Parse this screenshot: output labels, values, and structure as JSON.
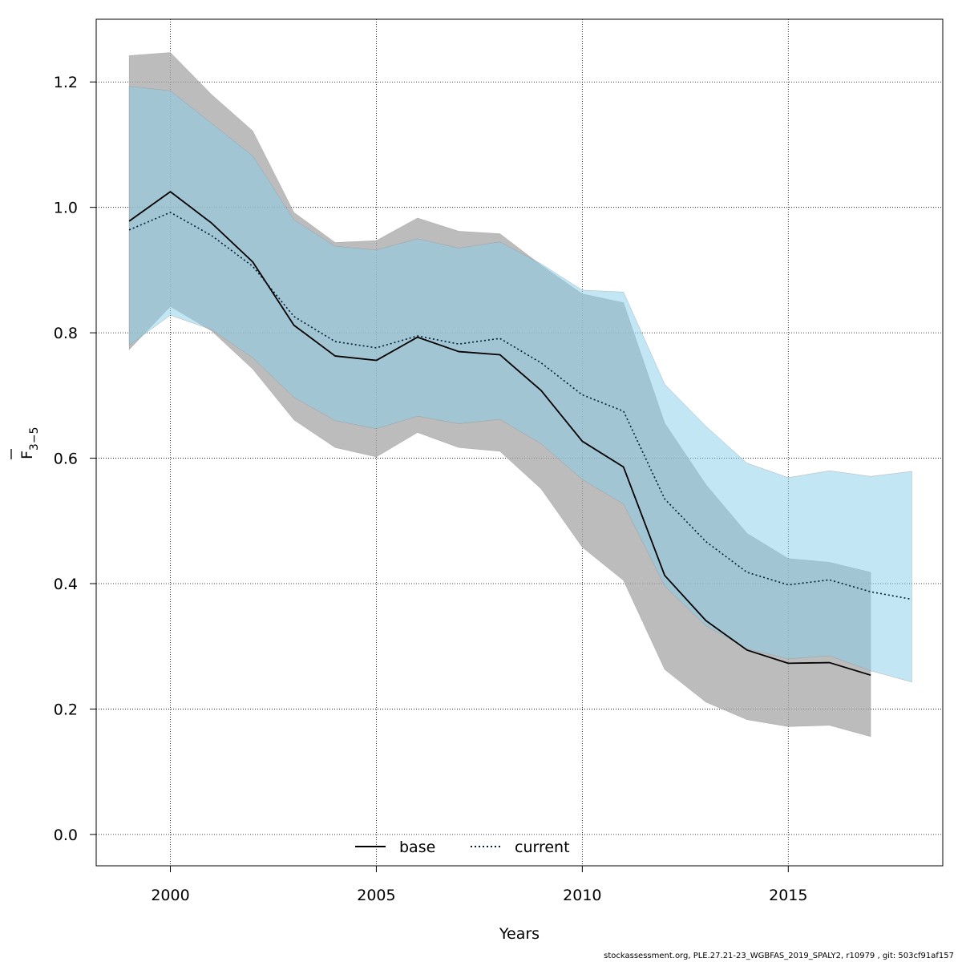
{
  "chart_data": {
    "type": "line",
    "xlabel": "Years",
    "ylabel_main": "F",
    "ylabel_sub": "3−5",
    "xlim": [
      1998.2,
      2018.75
    ],
    "ylim": [
      -0.05,
      1.3
    ],
    "xticks": [
      2000,
      2005,
      2010,
      2015
    ],
    "yticks": [
      0.0,
      0.2,
      0.4,
      0.6,
      0.8,
      1.0,
      1.2
    ],
    "ytick_labels": [
      "0.0",
      "0.2",
      "0.4",
      "0.6",
      "0.8",
      "1.0",
      "1.2"
    ],
    "grid": true,
    "legend_placement": "bottom-center",
    "series": [
      {
        "name": "base",
        "line_style": "solid",
        "line_color": "#000000",
        "band_color": "#a6a6a6",
        "x": [
          1999,
          2000,
          2001,
          2002,
          2003,
          2004,
          2005,
          2006,
          2007,
          2008,
          2009,
          2010,
          2011,
          2012,
          2013,
          2014,
          2015,
          2016,
          2017
        ],
        "y": [
          0.978,
          1.025,
          0.975,
          0.913,
          0.812,
          0.763,
          0.756,
          0.793,
          0.77,
          0.765,
          0.708,
          0.627,
          0.586,
          0.413,
          0.341,
          0.294,
          0.273,
          0.274,
          0.254
        ],
        "lower": [
          0.773,
          0.842,
          0.803,
          0.742,
          0.661,
          0.617,
          0.602,
          0.641,
          0.617,
          0.611,
          0.551,
          0.458,
          0.405,
          0.263,
          0.211,
          0.183,
          0.172,
          0.174,
          0.156
        ],
        "upper": [
          1.242,
          1.247,
          1.18,
          1.122,
          0.992,
          0.944,
          0.947,
          0.983,
          0.962,
          0.958,
          0.908,
          0.862,
          0.848,
          0.656,
          0.558,
          0.48,
          0.44,
          0.434,
          0.418
        ]
      },
      {
        "name": "current",
        "line_style": "dotted",
        "line_color": "#001933",
        "band_color": "#87ceeb",
        "x": [
          1999,
          2000,
          2001,
          2002,
          2003,
          2004,
          2005,
          2006,
          2007,
          2008,
          2009,
          2010,
          2011,
          2012,
          2013,
          2014,
          2015,
          2016,
          2017,
          2018
        ],
        "y": [
          0.964,
          0.992,
          0.955,
          0.906,
          0.826,
          0.786,
          0.776,
          0.795,
          0.782,
          0.791,
          0.752,
          0.701,
          0.675,
          0.535,
          0.467,
          0.418,
          0.398,
          0.406,
          0.387,
          0.375
        ],
        "lower": [
          0.78,
          0.828,
          0.805,
          0.76,
          0.697,
          0.66,
          0.647,
          0.667,
          0.655,
          0.662,
          0.623,
          0.566,
          0.527,
          0.396,
          0.333,
          0.296,
          0.28,
          0.285,
          0.261,
          0.243
        ],
        "upper": [
          1.193,
          1.186,
          1.134,
          1.082,
          0.98,
          0.938,
          0.932,
          0.95,
          0.935,
          0.945,
          0.91,
          0.868,
          0.865,
          0.718,
          0.651,
          0.592,
          0.569,
          0.58,
          0.571,
          0.579
        ]
      }
    ]
  },
  "footer": "stockassessment.org, PLE.27.21-23_WGBFAS_2019_SPALY2, r10979 , git: 503cf91af157"
}
